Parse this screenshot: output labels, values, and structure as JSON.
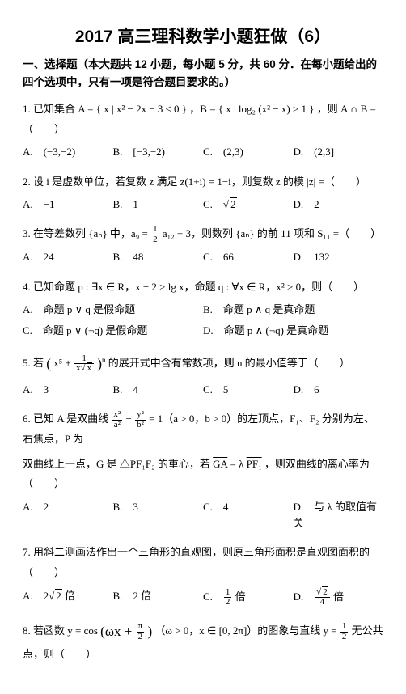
{
  "title": "2017 高三理科数学小题狂做（6）",
  "section_header": "一、选择题（本大题共 12 小题，每小题 5 分，共 60 分．在每小题给出的四个选项中，只有一项是符合题目要求的。）",
  "q1": {
    "stem_a": "1. 已知集合 A = ",
    "set1": "{ x | x² − 2x − 3 ≤ 0 }",
    "mid": "，B = ",
    "set2": "{ x | log₂ (x² − x) > 1 }",
    "tail": "，则 A ∩ B =（　　）",
    "A": "A.　(−3,−2)",
    "B": "B.　[−3,−2)",
    "C": "C.　(2,3)",
    "D": "D.　(2,3]"
  },
  "q2": {
    "stem": "2. 设 i 是虚数单位，若复数 z 满足 z(1+i) = 1−i，则复数 z 的模 |z| =（　　）",
    "A": "A.　−1",
    "B": "B.　1",
    "C_pre": "C.　",
    "C_rad": "2",
    "D": "D.　2"
  },
  "q3": {
    "stem_a": "3. 在等差数列 {aₙ} 中，a₉ = ",
    "f_n": "1",
    "f_d": "2",
    "stem_b": " a₁₂ + 3，则数列 {aₙ} 的前 11 项和 S₁₁ =（　　）",
    "A": "A.　24",
    "B": "B.　48",
    "C": "C.　66",
    "D": "D.　132"
  },
  "q4": {
    "stem": "4. 已知命题 p : ∃x ∈ R，x − 2 > lg x，命题 q : ∀x ∈ R，x² > 0，则（　　）",
    "A": "A.　命题 p ∨ q 是假命题",
    "B": "B.　命题 p ∧ q 是真命题",
    "C": "C.　命题 p ∨ (¬q) 是假命题",
    "D": "D.　命题 p ∧ (¬q) 是真命题"
  },
  "q5": {
    "stem_a": "5. 若 ",
    "expr_pre": "(",
    "expr_a": "x⁵ + ",
    "f_n": "1",
    "f_d_pre": "x",
    "f_d_rad": "x",
    "expr_post": ")",
    "exp": "n",
    "stem_b": " 的展开式中含有常数项，则 n 的最小值等于（　　）",
    "A": "A.　3",
    "B": "B.　4",
    "C": "C.　5",
    "D": "D.　6"
  },
  "q6": {
    "stem_a": "6. 已知 A 是双曲线 ",
    "f1n": "x²",
    "f1d": "a²",
    "mid1": " − ",
    "f2n": "y²",
    "f2d": "b²",
    "stem_b": " = 1（a > 0，b > 0）的左顶点，F₁、F₂ 分别为左、右焦点，P 为",
    "stem_c": "双曲线上一点，G 是 △PF₁F₂ 的重心，若 ",
    "ov1": "GA",
    "eq": " = λ",
    "ov2": "PF₁",
    "stem_d": "，则双曲线的离心率为（　　）",
    "A": "A.　2",
    "B": "B.　3",
    "C": "C.　4",
    "D": "D.　与 λ 的取值有关"
  },
  "q7": {
    "stem": "7. 用斜二测画法作出一个三角形的直观图，则原三角形面积是直观图面积的（　　）",
    "A_pre": "A.　2",
    "A_rad": "2",
    "A_post": " 倍",
    "B": "B.　2 倍",
    "C_pre": "C.　",
    "C_n": "1",
    "C_d": "2",
    "C_post": " 倍",
    "D_pre": "D.　",
    "D_n_rad": "2",
    "D_d": "4",
    "D_post": " 倍"
  },
  "q8": {
    "stem_a": "8. 若函数 y = cos",
    "arg_a": "(ωx + ",
    "f_n": "π",
    "f_d": "2",
    "arg_b": ")",
    "stem_b": "（ω > 0，x ∈ [0, 2π]）的图象与直线 y = ",
    "g_n": "1",
    "g_d": "2",
    "stem_c": " 无公共点，则（　　）"
  }
}
